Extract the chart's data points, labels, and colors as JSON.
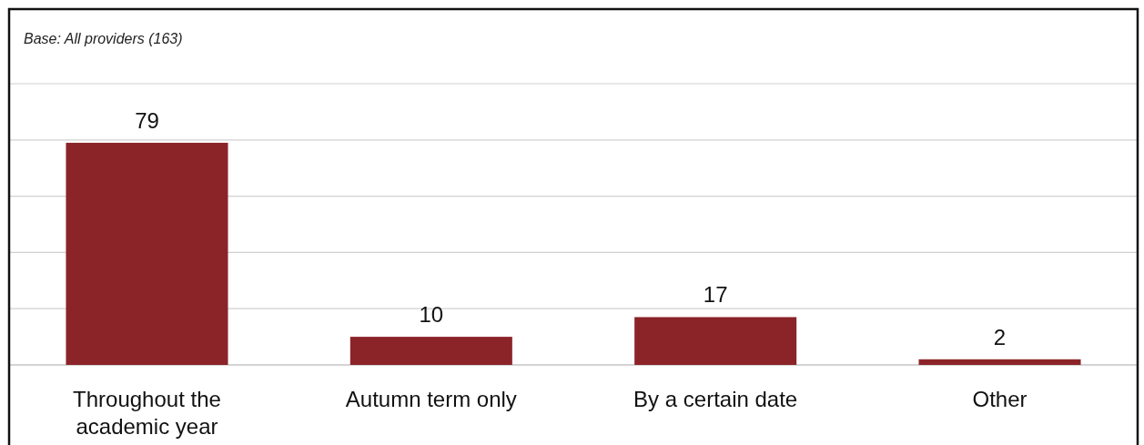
{
  "chart_data": {
    "type": "bar",
    "annotations": [
      "Base: All providers (163)"
    ],
    "categories": [
      "Throughout the academic year",
      "Autumn term only",
      "By a certain date",
      "Other"
    ],
    "values": [
      79,
      10,
      17,
      2
    ],
    "color": "#8b2428",
    "ylim": [
      0,
      100
    ],
    "yticks": [
      {
        "value": 0,
        "label": null
      },
      {
        "value": 20,
        "label": null
      },
      {
        "value": 40,
        "label": null
      },
      {
        "value": 60,
        "label": null
      },
      {
        "value": 80,
        "label": null
      },
      {
        "value": 100,
        "label": null
      }
    ],
    "grid": true,
    "tick_labels": "x",
    "data_labels": true
  }
}
